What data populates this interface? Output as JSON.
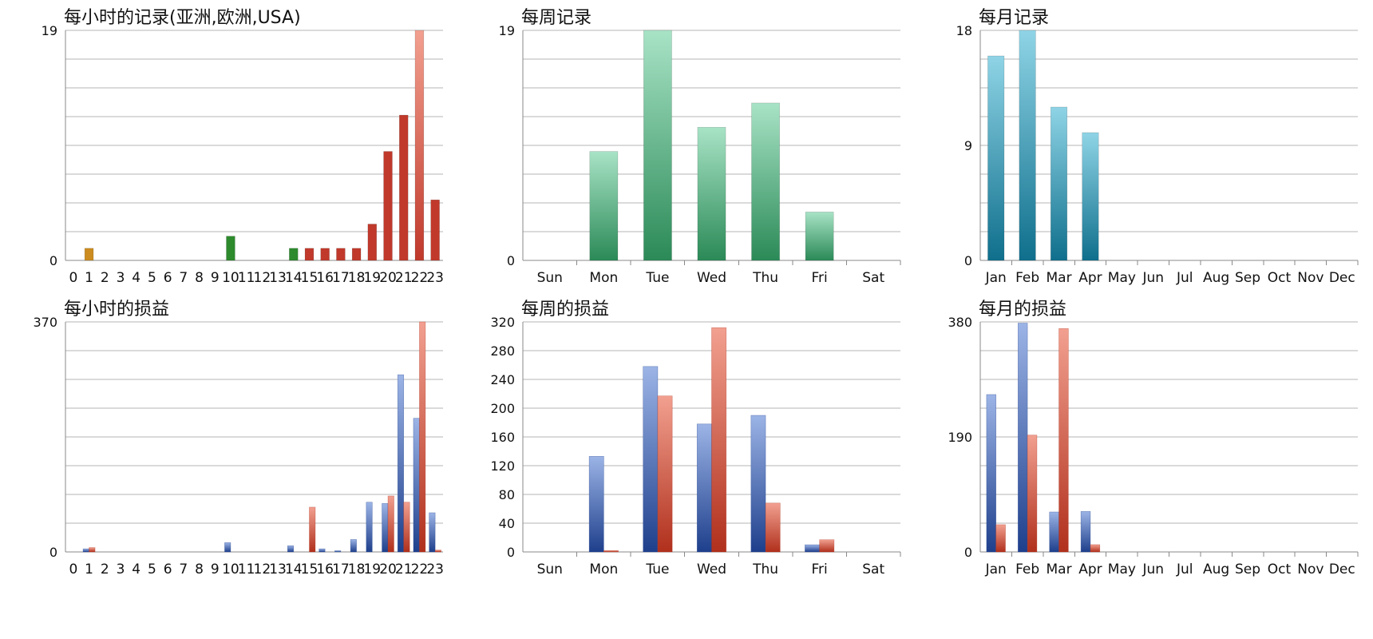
{
  "charts": [
    {
      "title": "每小时的记录(亚洲,欧洲,USA)",
      "chart_data": {
        "type": "bar",
        "categories": [
          "0",
          "1",
          "2",
          "3",
          "4",
          "5",
          "6",
          "7",
          "8",
          "9",
          "10",
          "11",
          "12",
          "13",
          "14",
          "15",
          "16",
          "17",
          "18",
          "19",
          "20",
          "21",
          "22",
          "23"
        ],
        "values": [
          0,
          1,
          0,
          0,
          0,
          0,
          0,
          0,
          0,
          0,
          2,
          0,
          0,
          0,
          1,
          1,
          1,
          1,
          1,
          3,
          9,
          12,
          19,
          5
        ],
        "ylim": [
          0,
          19
        ],
        "ytick_labels": [
          "0",
          "19"
        ],
        "gridlines": 8,
        "bar_colors": [
          "#cc8c1f",
          "#cc8c1f",
          "#cc8c1f",
          "#cc8c1f",
          "#cc8c1f",
          "#cc8c1f",
          "#cc8c1f",
          "#cc8c1f",
          "#2d8a2d",
          "#2d8a2d",
          "#2d8a2d",
          "#2d8a2d",
          "#2d8a2d",
          "#2d8a2d",
          "#2d8a2d",
          "#c0392b",
          "#c0392b",
          "#c0392b",
          "#c0392b",
          "#c0392b",
          "#c0392b",
          "#c0392b",
          "#c0392b",
          "#c0392b"
        ]
      }
    },
    {
      "title": "每周记录",
      "chart_data": {
        "type": "bar",
        "categories": [
          "Sun",
          "Mon",
          "Tue",
          "Wed",
          "Thu",
          "Fri",
          "Sat"
        ],
        "values": [
          0,
          9,
          19,
          11,
          13,
          4,
          0
        ],
        "ylim": [
          0,
          19
        ],
        "ytick_labels": [
          "0",
          "19"
        ],
        "gridlines": 8,
        "colors": [
          "#a8e3c6",
          "#2b8a57"
        ]
      }
    },
    {
      "title": "每月记录",
      "chart_data": {
        "type": "bar",
        "categories": [
          "Jan",
          "Feb",
          "Mar",
          "Apr",
          "May",
          "Jun",
          "Jul",
          "Aug",
          "Sep",
          "Oct",
          "Nov",
          "Dec"
        ],
        "values": [
          16,
          18,
          12,
          10,
          0,
          0,
          0,
          0,
          0,
          0,
          0,
          0
        ],
        "ylim": [
          0,
          18
        ],
        "ytick_labels": [
          "0",
          "9",
          "18"
        ],
        "gridlines": 8,
        "colors": [
          "#8fd4e6",
          "#0f6f8c"
        ]
      }
    },
    {
      "title": "每小时的损益",
      "chart_data": {
        "type": "bar",
        "categories": [
          "0",
          "1",
          "2",
          "3",
          "4",
          "5",
          "6",
          "7",
          "8",
          "9",
          "10",
          "11",
          "12",
          "13",
          "14",
          "15",
          "16",
          "17",
          "18",
          "19",
          "20",
          "21",
          "22",
          "23"
        ],
        "series": [
          {
            "values": [
              0,
              5,
              0,
              0,
              0,
              0,
              0,
              0,
              0,
              0,
              15,
              0,
              0,
              0,
              10,
              0,
              5,
              2,
              20,
              80,
              78,
              285,
              215,
              63
            ]
          },
          {
            "values": [
              0,
              7,
              0,
              0,
              0,
              0,
              0,
              0,
              0,
              0,
              0,
              0,
              0,
              0,
              0,
              72,
              0,
              0,
              0,
              0,
              90,
              80,
              370,
              3
            ]
          }
        ],
        "ylim": [
          0,
          370
        ],
        "ytick_labels": [
          "0",
          "370"
        ],
        "gridlines": 8,
        "series_colors": [
          [
            "#9cb4e6",
            "#1e3f8c"
          ],
          [
            "#f2a090",
            "#b0301c"
          ]
        ]
      }
    },
    {
      "title": "每周的损益",
      "chart_data": {
        "type": "bar",
        "categories": [
          "Sun",
          "Mon",
          "Tue",
          "Wed",
          "Thu",
          "Fri",
          "Sat"
        ],
        "series": [
          {
            "values": [
              0,
              133,
              258,
              178,
              190,
              10,
              0
            ]
          },
          {
            "values": [
              0,
              2,
              217,
              312,
              68,
              17,
              0
            ]
          }
        ],
        "ylim": [
          0,
          320
        ],
        "ytick_labels": [
          "0",
          "40",
          "80",
          "120",
          "160",
          "200",
          "240",
          "280",
          "320"
        ],
        "gridlines": 8,
        "series_colors": [
          [
            "#9cb4e6",
            "#1e3f8c"
          ],
          [
            "#f2a090",
            "#b0301c"
          ]
        ]
      }
    },
    {
      "title": "每月的损益",
      "chart_data": {
        "type": "bar",
        "categories": [
          "Jan",
          "Feb",
          "Mar",
          "Apr",
          "May",
          "Jun",
          "Jul",
          "Aug",
          "Sep",
          "Oct",
          "Nov",
          "Dec"
        ],
        "series": [
          {
            "values": [
              260,
              378,
              66,
              67,
              0,
              0,
              0,
              0,
              0,
              0,
              0,
              0
            ]
          },
          {
            "values": [
              45,
              193,
              369,
              12,
              0,
              0,
              0,
              0,
              0,
              0,
              0,
              0
            ]
          }
        ],
        "ylim": [
          0,
          380
        ],
        "ytick_labels": [
          "0",
          "190",
          "380"
        ],
        "gridlines": 8,
        "series_colors": [
          [
            "#9cb4e6",
            "#1e3f8c"
          ],
          [
            "#f2a090",
            "#b0301c"
          ]
        ]
      }
    }
  ]
}
